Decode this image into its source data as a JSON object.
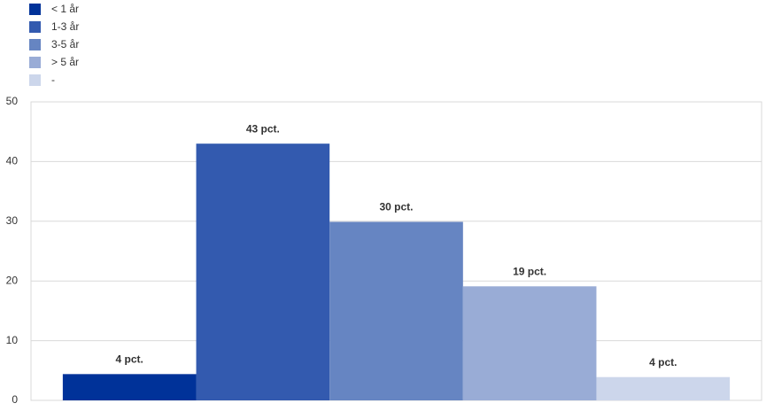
{
  "chart_data": {
    "type": "bar",
    "categories": [
      null
    ],
    "series": [
      {
        "name": "< 1 år",
        "color": "#003299",
        "values": [
          4.4
        ],
        "value_labels": [
          "4 pct."
        ]
      },
      {
        "name": "1-3 år",
        "color": "#335aaf",
        "values": [
          43
        ],
        "value_labels": [
          "43 pct."
        ]
      },
      {
        "name": "3-5 år",
        "color": "#6685c2",
        "values": [
          29.9
        ],
        "value_labels": [
          "30 pct."
        ]
      },
      {
        "name": "> 5 år",
        "color": "#99acd6",
        "values": [
          19.1
        ],
        "value_labels": [
          "19 pct."
        ]
      },
      {
        "name": "-",
        "color": "#ccd6eb",
        "values": [
          3.9
        ],
        "value_labels": [
          "4 pct."
        ]
      }
    ],
    "ylim": [
      0,
      50
    ],
    "yticks": [
      0,
      10,
      20,
      30,
      40,
      50
    ],
    "grid": true
  }
}
